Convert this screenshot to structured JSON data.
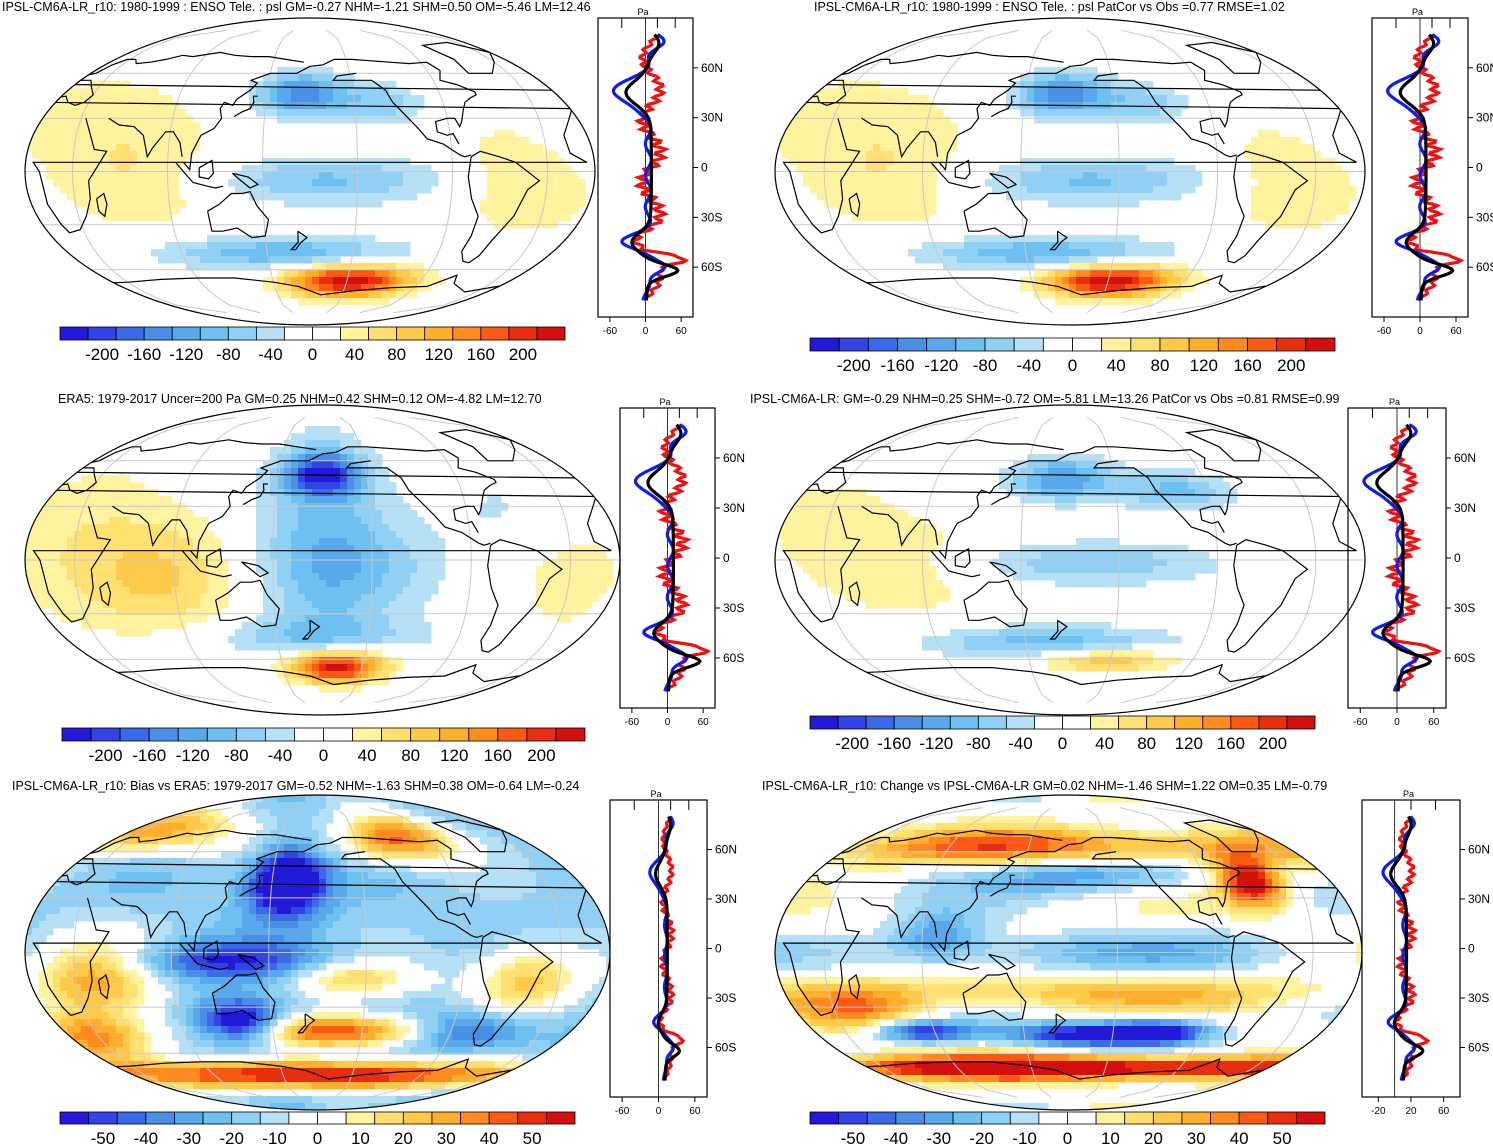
{
  "colors": {
    "scale": [
      "#2319d9",
      "#3344e6",
      "#3b6ae8",
      "#4a8ee6",
      "#5aa8ec",
      "#6ec0f0",
      "#8fd0f4",
      "#b5e0f6",
      "#ffffff",
      "#ffffff",
      "#fff3a0",
      "#ffe070",
      "#ffc94a",
      "#ffae2e",
      "#ff8a1f",
      "#fb5a14",
      "#e92e10",
      "#d40f0f"
    ],
    "obs_line": "#000000",
    "model_line": "#0a1ee8",
    "diff_line": "#ee1111",
    "coast": "#000000",
    "grid": "#c8c8c8"
  },
  "chart_data": [
    {
      "type": "heatmap",
      "title": "IPSL-CM6A-LR_r10: 1980-1999 : ENSO Tele. : psl GM=-0.27 NHM=-1.21 SHM=0.50 OM=-5.46 LM=12.46",
      "colorbar_ticks": [
        "-200",
        "-160",
        "-120",
        "-80",
        "-40",
        "0",
        "40",
        "80",
        "120",
        "160",
        "200"
      ],
      "profile": {
        "unit": "Pa",
        "xticks": [
          "-60",
          "0",
          "60"
        ],
        "yticks": [
          "60N",
          "30N",
          "0",
          "30S",
          "60S"
        ],
        "xlim": [
          -80,
          80
        ],
        "ylim": [
          -90,
          90
        ]
      },
      "field": "enso_psl_model"
    },
    {
      "type": "heatmap",
      "title": "IPSL-CM6A-LR_r10: 1980-1999 : ENSO Tele. : psl PatCor vs Obs =0.77 RMSE=1.02",
      "colorbar_ticks": [
        "-200",
        "-160",
        "-120",
        "-80",
        "-40",
        "0",
        "40",
        "80",
        "120",
        "160",
        "200"
      ],
      "profile": {
        "unit": "Pa",
        "xticks": [
          "-60",
          "0",
          "60"
        ],
        "yticks": [
          "60N",
          "30N",
          "0",
          "30S",
          "60S"
        ],
        "xlim": [
          -80,
          80
        ],
        "ylim": [
          -90,
          90
        ]
      },
      "field": "enso_psl_model"
    },
    {
      "type": "heatmap",
      "title": "ERA5: 1979-2017 Uncer=200 Pa GM=0.25 NHM=0.42 SHM=0.12 OM=-4.82 LM=12.70",
      "colorbar_ticks": [
        "-200",
        "-160",
        "-120",
        "-80",
        "-40",
        "0",
        "40",
        "80",
        "120",
        "160",
        "200"
      ],
      "profile": {
        "unit": "Pa",
        "xticks": [
          "-60",
          "0",
          "60"
        ],
        "yticks": [
          "60N",
          "30N",
          "0",
          "30S",
          "60S"
        ],
        "xlim": [
          -80,
          80
        ],
        "ylim": [
          -90,
          90
        ]
      },
      "field": "enso_psl_obs"
    },
    {
      "type": "heatmap",
      "title": "IPSL-CM6A-LR: GM=-0.29 NHM=0.25 SHM=-0.72 OM=-5.81 LM=13.26 PatCor vs Obs =0.81 RMSE=0.99",
      "colorbar_ticks": [
        "-200",
        "-160",
        "-120",
        "-80",
        "-40",
        "0",
        "40",
        "80",
        "120",
        "160",
        "200"
      ],
      "profile": {
        "unit": "Pa",
        "xticks": [
          "-60",
          "0",
          "60"
        ],
        "yticks": [
          "60N",
          "30N",
          "0",
          "30S",
          "60S"
        ],
        "xlim": [
          -80,
          80
        ],
        "ylim": [
          -90,
          90
        ]
      },
      "field": "enso_psl_model2"
    },
    {
      "type": "heatmap",
      "title": "IPSL-CM6A-LR_r10: Bias vs ERA5: 1979-2017 GM=-0.52 NHM=-1.63 SHM=0.38 OM=-0.64 LM=-0.24",
      "colorbar_ticks": [
        "-50",
        "-40",
        "-30",
        "-20",
        "-10",
        "0",
        "10",
        "20",
        "30",
        "40",
        "50"
      ],
      "profile": {
        "unit": "Pa",
        "xticks": [
          "-60",
          "0",
          "60"
        ],
        "yticks": [
          "60N",
          "30N",
          "0",
          "30S",
          "60S"
        ],
        "xlim": [
          -80,
          80
        ],
        "ylim": [
          -90,
          90
        ]
      },
      "field": "bias"
    },
    {
      "type": "heatmap",
      "title": "IPSL-CM6A-LR_r10: Change vs IPSL-CM6A-LR GM=0.02 NHM=-1.46 SHM=1.22 OM=0.35 LM=-0.79",
      "colorbar_ticks": [
        "-50",
        "-40",
        "-30",
        "-20",
        "-10",
        "0",
        "10",
        "20",
        "30",
        "40",
        "50"
      ],
      "profile": {
        "unit": "Pa",
        "xticks": [
          "-20",
          "20",
          "60"
        ],
        "yticks": [
          "60N",
          "30N",
          "0",
          "30S",
          "60S"
        ],
        "xlim": [
          -40,
          80
        ],
        "ylim": [
          -90,
          90
        ]
      },
      "field": "change"
    }
  ]
}
